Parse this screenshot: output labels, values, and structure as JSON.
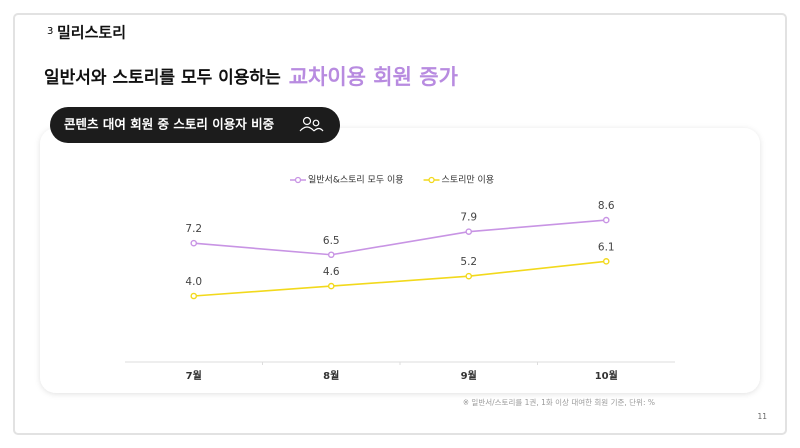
{
  "section": {
    "number": "3",
    "label": "밀리스토리"
  },
  "heading": {
    "text": "일반서와 스토리를 모두 이용하는",
    "highlight": "교차이용 회원 증가"
  },
  "chart_data": {
    "type": "line",
    "title": "콘텐츠 대여 회원 중 스토리 이용자 비중",
    "categories": [
      "7월",
      "8월",
      "9월",
      "10월"
    ],
    "series": [
      {
        "name": "일반서&스토리 모두 이용",
        "color": "#c894e4",
        "values": [
          7.2,
          6.5,
          7.9,
          8.6
        ]
      },
      {
        "name": "스토리만 이용",
        "color": "#f2d91c",
        "values": [
          4.0,
          4.6,
          5.2,
          6.1
        ],
        "value_labels": [
          "4.0",
          "4.6",
          "5.2",
          "6.1"
        ]
      }
    ],
    "legend": "top"
  },
  "footnote": "※ 일반서/스토리를 1권, 1화 이상 대여한 회원 기준, 단위: %",
  "page_number": "11"
}
